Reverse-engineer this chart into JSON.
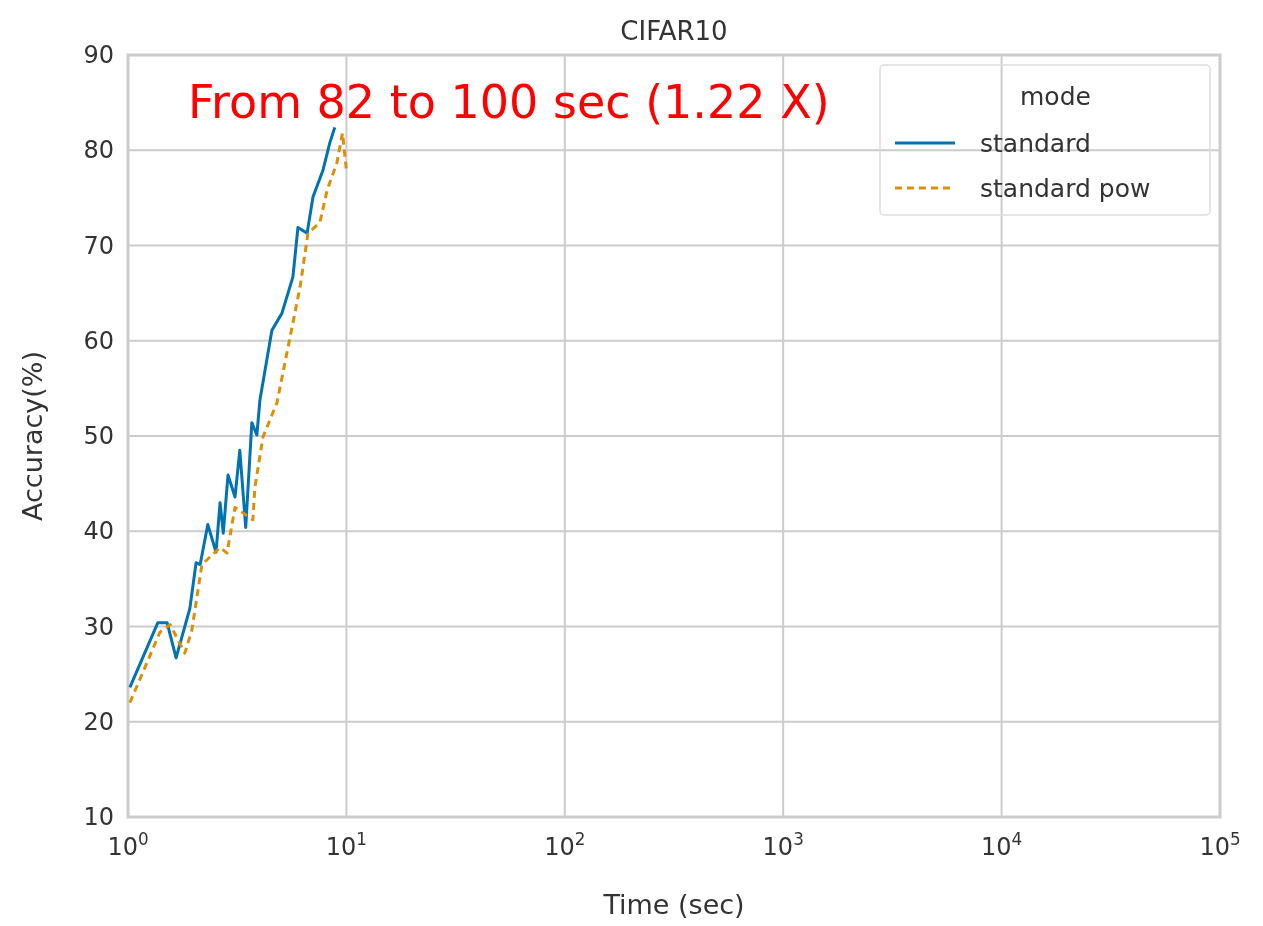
{
  "chart_data": {
    "type": "line",
    "title": "CIFAR10",
    "xlabel": "Time (sec)",
    "ylabel": "Accuracy(%)",
    "legend_title": "mode",
    "legend": "top right",
    "grid": true,
    "log": "x",
    "annotations": [
      "From 82 to 100 sec (1.22 X)"
    ],
    "xlim": [
      1,
      100000
    ],
    "xticks": [
      {
        "value": 1,
        "label": "10$^{0}$"
      },
      {
        "value": 10,
        "label": "10$^{1}$"
      },
      {
        "value": 100,
        "label": "10$^{2}$"
      },
      {
        "value": 1000,
        "label": "10$^{3}$"
      },
      {
        "value": 10000,
        "label": "10$^{4}$"
      },
      {
        "value": 100000,
        "label": "10$^{5}$"
      }
    ],
    "ylim": [
      10,
      90
    ],
    "yticks": [
      10,
      20,
      30,
      40,
      50,
      60,
      70,
      80,
      90
    ],
    "series": [
      {
        "name": "standard",
        "color": "#0173b2",
        "line_style": "solid",
        "x": [
          1.02,
          1.37,
          1.51,
          1.66,
          1.92,
          2.05,
          2.14,
          2.32,
          2.53,
          2.64,
          2.73,
          2.87,
          3.09,
          3.25,
          3.46,
          3.69,
          3.89,
          4.02,
          4.56,
          5.07,
          5.69,
          6.0,
          6.61,
          7.03,
          7.81,
          8.4,
          8.85
        ],
        "values": [
          23.6,
          30.4,
          30.4,
          26.7,
          31.9,
          36.7,
          36.5,
          40.7,
          37.8,
          43.0,
          39.8,
          45.9,
          43.6,
          48.5,
          40.4,
          51.4,
          50.1,
          53.8,
          61.1,
          62.9,
          66.7,
          71.9,
          71.3,
          75.1,
          77.9,
          80.8,
          82.4
        ]
      },
      {
        "name": "standard pow",
        "color": "#de8f05",
        "line_style": "dashed",
        "x": [
          1.02,
          1.4,
          1.56,
          1.82,
          1.96,
          2.18,
          2.64,
          2.84,
          3.09,
          3.73,
          3.81,
          4.15,
          4.81,
          6.13,
          6.67,
          7.56,
          8.16,
          9.05,
          9.6,
          10.0
        ],
        "values": [
          22.0,
          29.4,
          30.2,
          27.2,
          29.6,
          36.5,
          38.3,
          37.7,
          42.5,
          41.2,
          44.6,
          49.9,
          53.5,
          65.6,
          71.3,
          72.4,
          75.8,
          78.7,
          81.8,
          77.9
        ]
      }
    ]
  }
}
